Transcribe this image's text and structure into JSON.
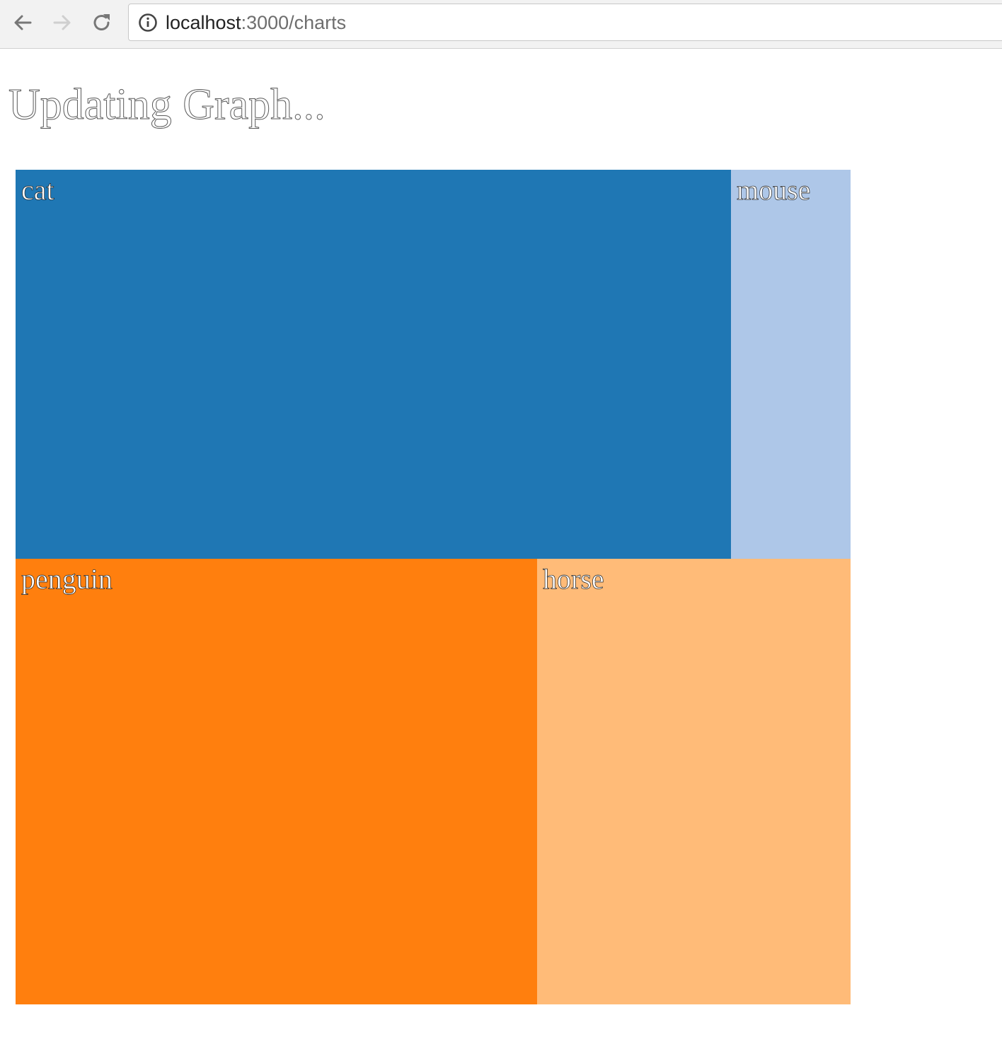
{
  "browser": {
    "url_host": "localhost",
    "url_path": ":3000/charts",
    "icons": {
      "back": "arrow-left-icon",
      "forward": "arrow-right-icon",
      "reload": "reload-icon",
      "info": "info-circle-icon"
    }
  },
  "page": {
    "title": "Updating Graph..."
  },
  "chart_data": {
    "type": "treemap",
    "cells": [
      {
        "label": "cat",
        "color": "#1f77b4"
      },
      {
        "label": "mouse",
        "color": "#aec7e8"
      },
      {
        "label": "penguin",
        "color": "#ff7f0e"
      },
      {
        "label": "horse",
        "color": "#ffbb78"
      }
    ]
  }
}
